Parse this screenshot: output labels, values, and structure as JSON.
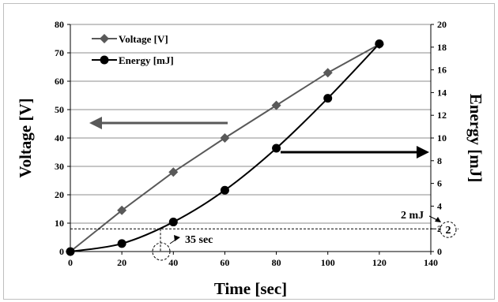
{
  "chart_data": {
    "type": "line",
    "xlabel": "Time [sec]",
    "ylabel_left": "Voltage [V]",
    "ylabel_right": "Energy [mJ]",
    "xlim": [
      0,
      140
    ],
    "ylim_left": [
      0,
      80
    ],
    "ylim_right": [
      0,
      20
    ],
    "x_ticks": [
      "0",
      "20",
      "40",
      "60",
      "80",
      "100",
      "120",
      "140"
    ],
    "y_left_ticks": [
      "0",
      "10",
      "20",
      "30",
      "40",
      "50",
      "60",
      "70",
      "80"
    ],
    "y_right_ticks": [
      "0",
      "2",
      "4",
      "6",
      "8",
      "10",
      "12",
      "14",
      "16",
      "18",
      "20"
    ],
    "grid": "horizontal",
    "legend_position": "top-left",
    "series": [
      {
        "name": "Voltage [V]",
        "axis": "left",
        "marker": "diamond",
        "color": "#595959",
        "x": [
          0,
          20,
          40,
          60,
          80,
          100,
          120
        ],
        "y": [
          0,
          14.5,
          28,
          40,
          51.5,
          63,
          73
        ]
      },
      {
        "name": "Energy [mJ]",
        "axis": "right",
        "marker": "circle",
        "color": "#000000",
        "x": [
          0,
          20,
          40,
          60,
          80,
          100,
          120
        ],
        "y": [
          0,
          0.7,
          2.6,
          5.4,
          9.1,
          13.5,
          18.3
        ]
      }
    ],
    "annotations": {
      "threshold_label": "2 mJ",
      "threshold_circle_label": "2",
      "time_label": "35 sec",
      "threshold_value_mJ": 2,
      "time_value_sec": 35
    }
  }
}
